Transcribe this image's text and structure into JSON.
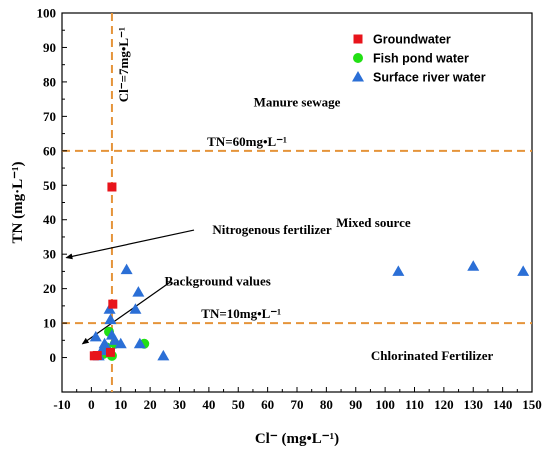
{
  "chart_data": {
    "type": "scatter",
    "xlabel": "Cl⁻ (mg•L⁻¹)",
    "ylabel": "TN (mg·L⁻¹)",
    "xlim": [
      -10,
      150
    ],
    "ylim": [
      -10,
      100
    ],
    "xticks": [
      -10,
      0,
      10,
      20,
      30,
      40,
      50,
      60,
      70,
      80,
      90,
      100,
      110,
      120,
      130,
      140,
      150
    ],
    "yticks": [
      0,
      10,
      20,
      30,
      40,
      50,
      60,
      70,
      80,
      90,
      100
    ],
    "grid": false,
    "legend_position": "top-right",
    "colors": {
      "groundwater": "#e8141b",
      "fish_pond": "#22e014",
      "surface_river": "#2b6fd6",
      "reference_line": "#e5943a"
    },
    "series": [
      {
        "name": "Groundwater",
        "marker": "square",
        "color": "#e8141b",
        "points": [
          [
            1,
            0.5
          ],
          [
            2,
            0.6
          ],
          [
            7,
            49.5
          ],
          [
            7.3,
            15.5
          ],
          [
            6.5,
            1.5
          ]
        ]
      },
      {
        "name": "Fish pond water",
        "marker": "circle",
        "color": "#22e014",
        "points": [
          [
            4,
            1
          ],
          [
            5,
            3
          ],
          [
            6,
            7.5
          ],
          [
            7,
            0.5
          ],
          [
            8,
            4
          ],
          [
            18,
            4
          ]
        ]
      },
      {
        "name": "Surface river water",
        "marker": "triangle",
        "color": "#2b6fd6",
        "points": [
          [
            1.5,
            6
          ],
          [
            2.5,
            0.5
          ],
          [
            3.5,
            2
          ],
          [
            4.5,
            4
          ],
          [
            5.5,
            2.5
          ],
          [
            6.2,
            14
          ],
          [
            6.5,
            11
          ],
          [
            7,
            6.5
          ],
          [
            8,
            5
          ],
          [
            10,
            4
          ],
          [
            12,
            25.5
          ],
          [
            15,
            14
          ],
          [
            16,
            19
          ],
          [
            16.5,
            4
          ],
          [
            24.5,
            0.5
          ],
          [
            104.5,
            25
          ],
          [
            130,
            26.5
          ],
          [
            147,
            25
          ]
        ]
      }
    ],
    "reference_lines": [
      {
        "orientation": "vertical",
        "x": 7,
        "label": "Cl⁻=7mg•L⁻¹"
      },
      {
        "orientation": "horizontal",
        "y": 60,
        "label": "TN=60mg•L⁻¹"
      },
      {
        "orientation": "horizontal",
        "y": 10,
        "label": "TN=10mg•L⁻¹"
      }
    ],
    "annotations": [
      {
        "text": "Manure sewage",
        "x": 70,
        "y": 74
      },
      {
        "text": "Mixed source",
        "x": 96,
        "y": 39
      },
      {
        "text": "Chlorinated Fertilizer",
        "x": 116,
        "y": 0.5
      },
      {
        "text": "Nitrogenous fertilizer",
        "x": 61.5,
        "y": 37,
        "arrow_to": [
          -8.5,
          29
        ]
      },
      {
        "text": "Background values",
        "x": 43,
        "y": 22,
        "arrow_from": [
          27,
          22
        ],
        "arrow_to": [
          -3,
          4
        ]
      }
    ]
  }
}
